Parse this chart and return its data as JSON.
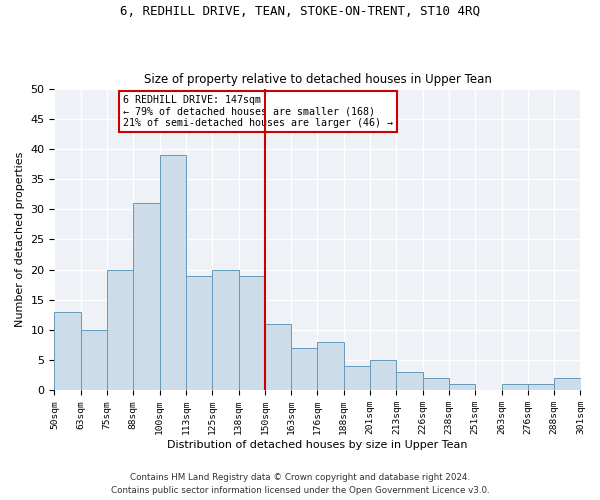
{
  "title": "6, REDHILL DRIVE, TEAN, STOKE-ON-TRENT, ST10 4RQ",
  "subtitle": "Size of property relative to detached houses in Upper Tean",
  "xlabel": "Distribution of detached houses by size in Upper Tean",
  "ylabel": "Number of detached properties",
  "bar_values": [
    13,
    10,
    20,
    31,
    39,
    19,
    20,
    19,
    11,
    7,
    8,
    4,
    5,
    3,
    2,
    1,
    0,
    1,
    1,
    2
  ],
  "bar_labels": [
    "50sqm",
    "63sqm",
    "75sqm",
    "88sqm",
    "100sqm",
    "113sqm",
    "125sqm",
    "138sqm",
    "150sqm",
    "163sqm",
    "176sqm",
    "188sqm",
    "201sqm",
    "213sqm",
    "226sqm",
    "238sqm",
    "251sqm",
    "263sqm",
    "276sqm",
    "288sqm",
    "301sqm"
  ],
  "bar_color": "#ccdce8",
  "bar_edge_color": "#6699bb",
  "vline_color": "#cc0000",
  "annotation_title": "6 REDHILL DRIVE: 147sqm",
  "annotation_line1": "← 79% of detached houses are smaller (168)",
  "annotation_line2": "21% of semi-detached houses are larger (46) →",
  "annotation_box_color": "#cc0000",
  "ylim": [
    0,
    50
  ],
  "yticks": [
    0,
    5,
    10,
    15,
    20,
    25,
    30,
    35,
    40,
    45,
    50
  ],
  "footer1": "Contains HM Land Registry data © Crown copyright and database right 2024.",
  "footer2": "Contains public sector information licensed under the Open Government Licence v3.0.",
  "background_color": "#eef2f7"
}
